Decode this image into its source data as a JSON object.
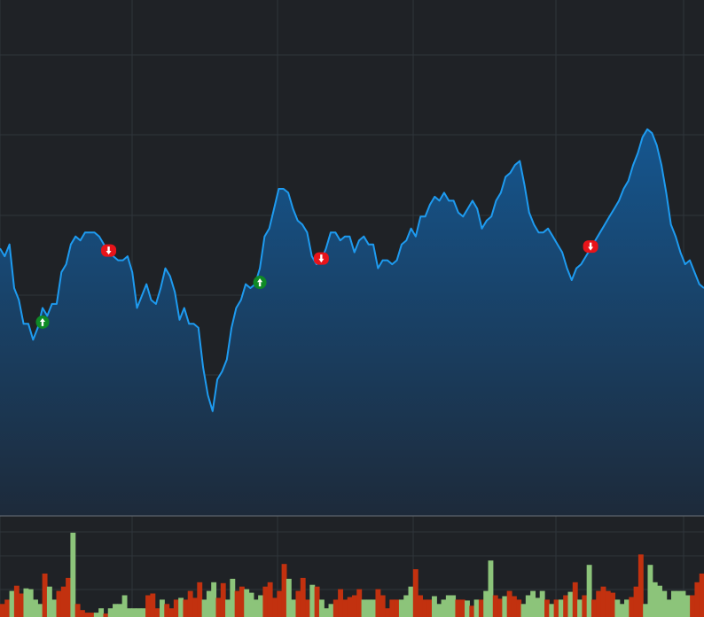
{
  "colors": {
    "background": "#1f2226",
    "grid": "#2f353b",
    "separator": "#6a7078",
    "price_line": "#1e9bf0",
    "area_top": "#15568f",
    "area_bottom": "#1d2a3a",
    "volume_up": "#8cc47a",
    "volume_down": "#c2310f",
    "marker_sell": "#e8141a",
    "marker_buy": "#0f8a26"
  },
  "chart_data": [
    {
      "type": "area",
      "panel": "price",
      "grid": true,
      "ylim": [
        0,
        100
      ],
      "markers": [
        {
          "index": 9,
          "signal": "buy",
          "icon": "up-arrow-icon"
        },
        {
          "index": 23,
          "signal": "sell",
          "icon": "down-arrow-icon"
        },
        {
          "index": 55,
          "signal": "buy",
          "icon": "up-arrow-icon"
        },
        {
          "index": 68,
          "signal": "sell",
          "icon": "down-arrow-icon"
        },
        {
          "index": 125,
          "signal": "sell",
          "icon": "down-arrow-icon"
        }
      ],
      "series": [
        {
          "values": [
            58,
            56,
            59,
            48,
            45,
            39,
            39,
            35,
            38,
            43,
            41,
            44,
            44,
            52,
            54,
            59,
            61,
            60,
            62,
            62,
            62,
            61,
            59,
            57,
            56,
            55,
            55,
            56,
            52,
            43,
            46,
            49,
            45,
            44,
            48,
            53,
            51,
            47,
            40,
            43,
            39,
            39,
            38,
            28,
            21,
            17,
            25,
            27,
            30,
            38,
            43,
            45,
            49,
            48,
            49,
            53,
            61,
            63,
            68,
            73,
            73,
            72,
            68,
            65,
            64,
            62,
            56,
            54,
            55,
            58,
            62,
            62,
            60,
            61,
            61,
            57,
            60,
            61,
            59,
            59,
            53,
            55,
            55,
            54,
            55,
            59,
            60,
            63,
            61,
            66,
            66,
            69,
            71,
            70,
            72,
            70,
            70,
            67,
            66,
            68,
            70,
            68,
            63,
            65,
            66,
            70,
            72,
            76,
            77,
            79,
            80,
            74,
            67,
            64,
            62,
            62,
            63,
            61,
            59,
            57,
            53,
            50,
            53,
            54,
            56,
            58,
            60,
            62,
            64,
            66,
            68,
            70,
            73,
            75,
            79,
            82,
            86,
            88,
            87,
            84,
            79,
            72,
            64,
            61,
            57,
            54,
            55,
            52,
            49,
            48
          ]
        }
      ]
    },
    {
      "type": "bar",
      "panel": "volume",
      "grid": true,
      "ylim": [
        0,
        100
      ],
      "series": [
        {
          "values": [
            15,
            20,
            30,
            36,
            27,
            33,
            32,
            20,
            15,
            50,
            35,
            20,
            30,
            35,
            45,
            97,
            15,
            8,
            5,
            5,
            5,
            10,
            4,
            10,
            15,
            15,
            25,
            10,
            10,
            10,
            10,
            25,
            27,
            10,
            20,
            15,
            10,
            20,
            22,
            20,
            30,
            22,
            40,
            20,
            30,
            40,
            22,
            39,
            20,
            44,
            30,
            35,
            32,
            28,
            20,
            25,
            35,
            40,
            22,
            30,
            61,
            44,
            20,
            30,
            45,
            20,
            37,
            35,
            20,
            10,
            15,
            20,
            32,
            20,
            23,
            25,
            32,
            20,
            20,
            20,
            32,
            25,
            10,
            20,
            20,
            20,
            25,
            35,
            55,
            25,
            20,
            20,
            24,
            15,
            20,
            25,
            25,
            20,
            20,
            19,
            13,
            20,
            20,
            30,
            65,
            25,
            21,
            24,
            30,
            24,
            20,
            15,
            25,
            30,
            22,
            30,
            20,
            15,
            20,
            20,
            25,
            29,
            40,
            20,
            25,
            60,
            20,
            30,
            35,
            30,
            28,
            20,
            15,
            20,
            23,
            35,
            72,
            15,
            60,
            40,
            36,
            30,
            20,
            30,
            30,
            30,
            25,
            25,
            40,
            50
          ]
        }
      ],
      "directions": "ddudduuuuduudddudddduuduuuuuuuudddudddudddduuudduudduuuuddddduuddduduuudddddduuuddddduuudddduuuuuddududuudduddduuuuududududududdddduuuddduuuuuuuuuudd"
    }
  ]
}
